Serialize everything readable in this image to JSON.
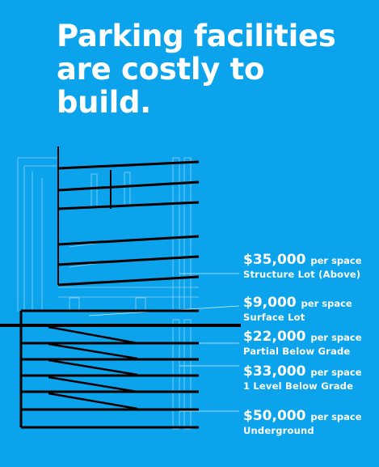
{
  "title_lines": [
    "Parking facilities",
    "are costly to",
    "build."
  ],
  "costs": [
    {
      "cost": "$35,000",
      "unit": "per space",
      "type": "Structure Lot (Above)"
    },
    {
      "cost": "$9,000",
      "unit": "per space",
      "type": "Surface Lot"
    },
    {
      "cost": "$22,000",
      "unit": "per space",
      "type": "Partial Below Grade"
    },
    {
      "cost": "$33,000",
      "unit": "per space",
      "type": "1 Level Below Grade"
    },
    {
      "cost": "$50,000",
      "unit": "per space",
      "type": "Underground"
    }
  ],
  "colors": {
    "background": "#0aa3ec",
    "line": "#000000",
    "text": "#ffffff",
    "thin_line": "#8fd3f5"
  }
}
